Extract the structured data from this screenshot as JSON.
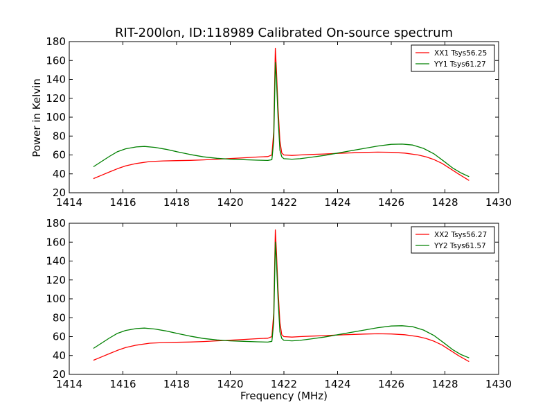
{
  "figure": {
    "title": "RIT-200lon, ID:118989 Calibrated On-source spectrum",
    "ylabel": "Power in Kelvin",
    "xlabel": "Frequency (MHz)"
  },
  "chart_data": [
    {
      "type": "line",
      "title": "RIT-200lon, ID:118989 Calibrated On-source spectrum",
      "xlabel": "",
      "ylabel": "Power in Kelvin",
      "xlim": [
        1414,
        1430
      ],
      "ylim": [
        20,
        180
      ],
      "xticks": [
        1414,
        1416,
        1418,
        1420,
        1422,
        1424,
        1426,
        1428,
        1430
      ],
      "yticks": [
        20,
        40,
        60,
        80,
        100,
        120,
        140,
        160,
        180
      ],
      "grid": false,
      "legend_position": "top-right",
      "series": [
        {
          "name": "XX1 Tsys56.25",
          "color": "#ff0000",
          "x": [
            1414.9,
            1415.2,
            1415.5,
            1415.8,
            1416.1,
            1416.5,
            1417.0,
            1417.5,
            1418.0,
            1418.5,
            1419.0,
            1419.5,
            1420.0,
            1420.5,
            1421.0,
            1421.4,
            1421.55,
            1421.62,
            1421.68,
            1421.72,
            1421.78,
            1421.85,
            1421.92,
            1422.0,
            1422.3,
            1422.6,
            1423.0,
            1423.5,
            1424.0,
            1424.5,
            1425.0,
            1425.5,
            1426.0,
            1426.5,
            1427.0,
            1427.3,
            1427.6,
            1427.9,
            1428.2,
            1428.5,
            1428.9
          ],
          "y": [
            35,
            38.5,
            42,
            45.5,
            48.5,
            51,
            53,
            53.7,
            54,
            54.3,
            54.8,
            55.5,
            56.2,
            57,
            57.8,
            58.3,
            60,
            85,
            173,
            150,
            110,
            75,
            62,
            60,
            59.5,
            60,
            60.5,
            61,
            61.7,
            62.2,
            62.7,
            63,
            62.8,
            62,
            60,
            58,
            55,
            51,
            45.5,
            40,
            33
          ]
        },
        {
          "name": "YY1 Tsys61.27",
          "color": "#008000",
          "x": [
            1414.9,
            1415.2,
            1415.5,
            1415.8,
            1416.1,
            1416.5,
            1416.8,
            1417.2,
            1417.6,
            1418.0,
            1418.5,
            1419.0,
            1419.5,
            1420.0,
            1420.5,
            1421.0,
            1421.4,
            1421.55,
            1421.62,
            1421.68,
            1421.72,
            1421.78,
            1421.85,
            1421.92,
            1422.0,
            1422.3,
            1422.6,
            1423.0,
            1423.5,
            1424.0,
            1424.5,
            1425.0,
            1425.5,
            1426.0,
            1426.4,
            1426.8,
            1427.2,
            1427.6,
            1428.0,
            1428.3,
            1428.6,
            1428.9
          ],
          "y": [
            47.5,
            53,
            58.5,
            63.5,
            66.5,
            68.5,
            69,
            68,
            66,
            63.5,
            60.5,
            58,
            56.5,
            55.5,
            55,
            54.5,
            54.2,
            55,
            75,
            158,
            140,
            100,
            65,
            58,
            56,
            55.5,
            56,
            57.5,
            59.5,
            62,
            64.5,
            67,
            69.5,
            71.2,
            71.5,
            70.5,
            67,
            61,
            52.5,
            46,
            41,
            37
          ]
        }
      ]
    },
    {
      "type": "line",
      "title": "",
      "xlabel": "Frequency (MHz)",
      "ylabel": "",
      "xlim": [
        1414,
        1430
      ],
      "ylim": [
        20,
        180
      ],
      "xticks": [
        1414,
        1416,
        1418,
        1420,
        1422,
        1424,
        1426,
        1428,
        1430
      ],
      "yticks": [
        20,
        40,
        60,
        80,
        100,
        120,
        140,
        160,
        180
      ],
      "grid": false,
      "legend_position": "top-right",
      "series": [
        {
          "name": "XX2 Tsys56.27",
          "color": "#ff0000",
          "x": [
            1414.9,
            1415.2,
            1415.5,
            1415.8,
            1416.1,
            1416.5,
            1417.0,
            1417.5,
            1418.0,
            1418.5,
            1419.0,
            1419.5,
            1420.0,
            1420.5,
            1421.0,
            1421.4,
            1421.55,
            1421.62,
            1421.68,
            1421.72,
            1421.78,
            1421.85,
            1421.92,
            1422.0,
            1422.3,
            1422.6,
            1423.0,
            1423.5,
            1424.0,
            1424.5,
            1425.0,
            1425.5,
            1426.0,
            1426.5,
            1427.0,
            1427.3,
            1427.6,
            1427.9,
            1428.2,
            1428.5,
            1428.9
          ],
          "y": [
            35,
            38.5,
            42,
            45.5,
            48.5,
            51,
            53,
            53.7,
            54,
            54.3,
            54.8,
            55.5,
            56.2,
            57,
            57.8,
            58.3,
            60,
            85,
            173,
            150,
            110,
            75,
            62,
            60,
            59.5,
            60,
            60.5,
            61,
            61.7,
            62.2,
            62.7,
            63,
            62.8,
            62,
            60,
            58,
            55,
            51,
            45.5,
            40,
            33.5
          ]
        },
        {
          "name": "YY2 Tsys61.57",
          "color": "#008000",
          "x": [
            1414.9,
            1415.2,
            1415.5,
            1415.8,
            1416.1,
            1416.5,
            1416.8,
            1417.2,
            1417.6,
            1418.0,
            1418.5,
            1419.0,
            1419.5,
            1420.0,
            1420.5,
            1421.0,
            1421.4,
            1421.55,
            1421.62,
            1421.68,
            1421.72,
            1421.78,
            1421.85,
            1421.92,
            1422.0,
            1422.3,
            1422.6,
            1423.0,
            1423.5,
            1424.0,
            1424.5,
            1425.0,
            1425.5,
            1426.0,
            1426.4,
            1426.8,
            1427.2,
            1427.6,
            1428.0,
            1428.3,
            1428.6,
            1428.9
          ],
          "y": [
            47.5,
            53,
            58.5,
            63.5,
            66.5,
            68.5,
            69,
            68,
            66,
            63.5,
            60.5,
            58,
            56.5,
            55.5,
            55,
            54.5,
            54.2,
            55,
            75,
            160,
            140,
            100,
            65,
            58,
            56,
            55.5,
            56,
            57.5,
            59.5,
            62,
            64.5,
            67,
            69.5,
            71.2,
            71.5,
            70.5,
            67,
            61,
            52.5,
            46,
            41,
            37.5
          ]
        }
      ]
    }
  ]
}
